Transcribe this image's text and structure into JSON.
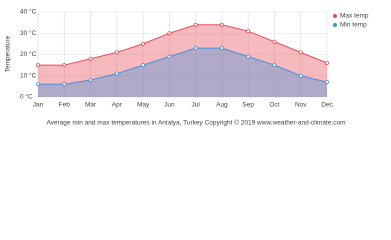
{
  "chart_data": {
    "type": "area",
    "y_label": "Temperature",
    "caption": "Average min and max temperatures in Antalya, Turkey   Copyright © 2019 www.weather-and-climate.com",
    "categories": [
      "Jan",
      "Feb",
      "Mar",
      "Apr",
      "May",
      "Jun",
      "Jul",
      "Aug",
      "Sep",
      "Oct",
      "Nov",
      "Dec"
    ],
    "series": [
      {
        "name": "Max temp",
        "color": "#e8505b",
        "values": [
          15,
          15,
          18,
          21,
          25,
          30,
          34,
          34,
          31,
          26,
          21,
          16
        ]
      },
      {
        "name": "Min temp",
        "color": "#4a90d9",
        "values": [
          6,
          6,
          8,
          11,
          15,
          19,
          23,
          23,
          19,
          15,
          10,
          7
        ]
      }
    ],
    "ylim": [
      0,
      40
    ],
    "yticks": [
      {
        "value": 0,
        "label": "0 °C"
      },
      {
        "value": 10,
        "label": "10 °C"
      },
      {
        "value": 20,
        "label": "20 °C"
      },
      {
        "value": 30,
        "label": "30 °C"
      },
      {
        "value": 40,
        "label": "40 °C"
      }
    ],
    "grid": true,
    "legend": "top-right"
  }
}
